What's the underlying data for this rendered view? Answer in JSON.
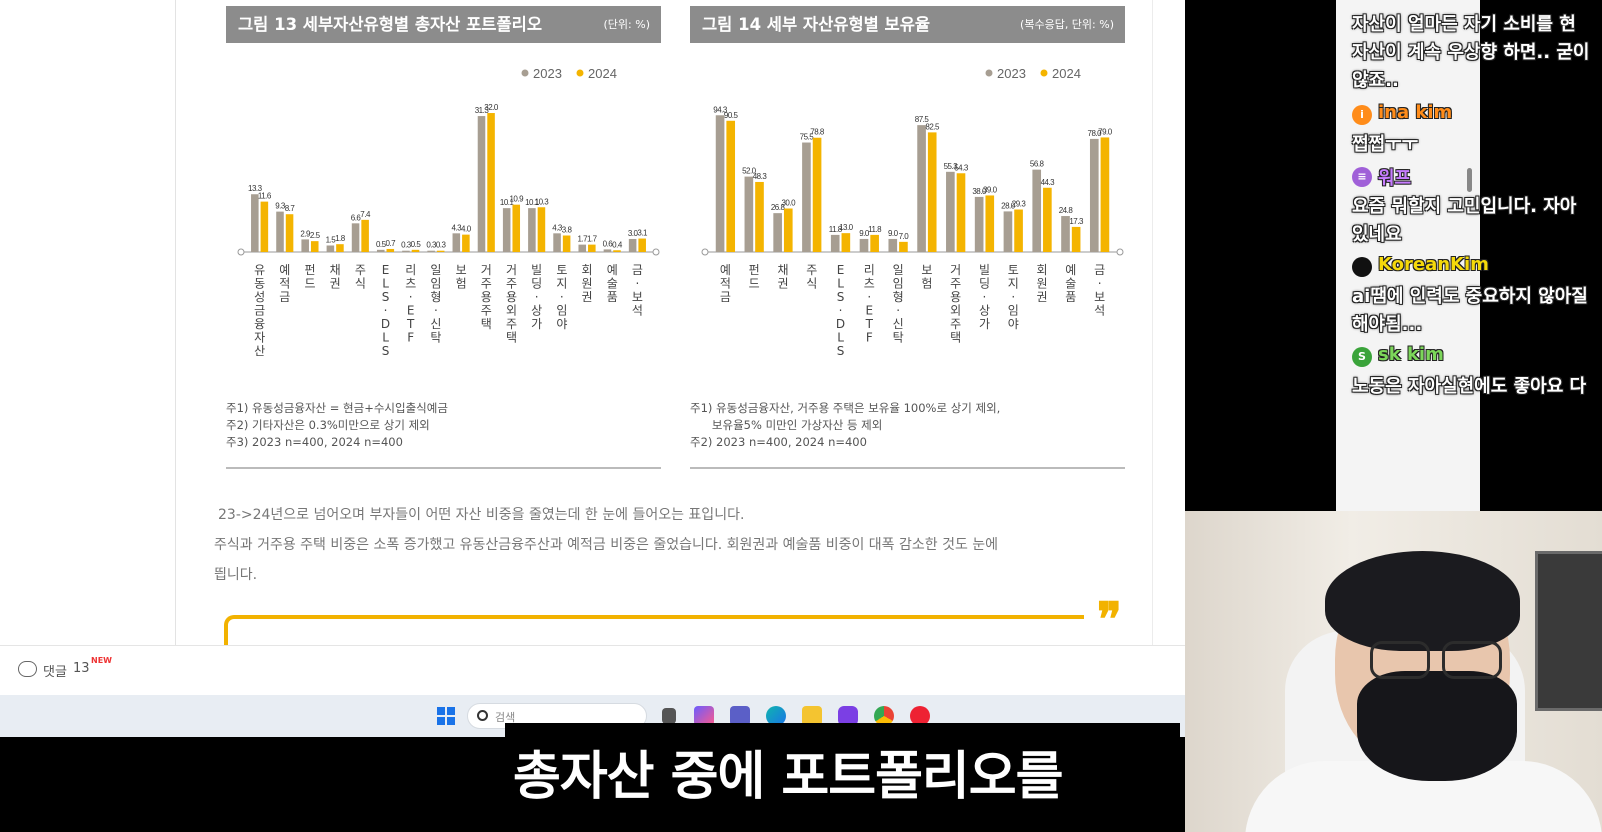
{
  "figures": [
    {
      "title": "그림 13  세부자산유형별 총자산 포트폴리오",
      "unit": "(단위: %)",
      "notes": [
        "주1) 유동성금융자산 = 현금+수시입출식예금",
        "주2) 기타자산은 0.3%미만으로 상기 제외",
        "주3) 2023 n=400, 2024 n=400"
      ]
    },
    {
      "title": "그림 14  세부 자산유형별 보유율",
      "unit": "(복수응답, 단위: %)",
      "notes": [
        "주1) 유동성금융자산, 거주용 주택은 보유율 100%로 상기 제외,",
        "      보유율5% 미만인 가상자산 등 제외",
        "주2) 2023 n=400, 2024 n=400"
      ]
    }
  ],
  "chart_data": [
    {
      "type": "bar",
      "title": "그림 13  세부자산유형별 총자산 포트폴리오",
      "unit": "(단위: %)",
      "categories": [
        "유동성금융자산",
        "예적금",
        "펀드",
        "채권",
        "주식",
        "ELS·DLS",
        "리츠·ETF",
        "일임형·신탁",
        "보험",
        "거주용주택",
        "거주용외주택",
        "빌딩·상가",
        "토지·임야",
        "회원권",
        "예술품",
        "금·보석"
      ],
      "series": [
        {
          "name": "2023",
          "color": "#a79e92",
          "values": [
            13.3,
            9.3,
            2.9,
            1.5,
            6.6,
            0.5,
            0.3,
            0.3,
            4.3,
            31.3,
            10.1,
            10.1,
            4.3,
            1.7,
            0.6,
            3.0
          ]
        },
        {
          "name": "2024",
          "color": "#f4b400",
          "values": [
            11.6,
            8.7,
            2.5,
            1.8,
            7.4,
            0.7,
            0.5,
            0.3,
            4.0,
            32.0,
            10.9,
            10.3,
            3.8,
            1.7,
            0.4,
            3.1
          ]
        }
      ],
      "legend": "top-right",
      "ylim": [
        0,
        35
      ]
    },
    {
      "type": "bar",
      "title": "그림 14  세부 자산유형별 보유율",
      "unit": "(복수응답, 단위: %)",
      "categories": [
        "예적금",
        "펀드",
        "채권",
        "주식",
        "ELS·DLS",
        "리츠·ETF",
        "일임형·신탁",
        "보험",
        "거주용외주택",
        "빌딩·상가",
        "토지·임야",
        "회원권",
        "예술품",
        "금·보석"
      ],
      "series": [
        {
          "name": "2023",
          "color": "#a79e92",
          "values": [
            94.3,
            52.0,
            26.8,
            75.5,
            11.8,
            9.0,
            9.0,
            87.5,
            55.3,
            38.0,
            28.0,
            56.8,
            24.8,
            78.0
          ]
        },
        {
          "name": "2024",
          "color": "#f4b400",
          "values": [
            90.5,
            48.3,
            30.0,
            78.8,
            13.0,
            11.8,
            7.0,
            82.5,
            54.3,
            39.0,
            29.3,
            44.3,
            17.3,
            79.0
          ]
        }
      ],
      "legend": "top-right",
      "ylim": [
        0,
        100
      ]
    }
  ],
  "body_text": [
    "23->24년으로 넘어오며 부자들이 어떤 자산 비중을 줄였는데 한 눈에 들어오는 표입니다.",
    "주식과 거주용 주택 비중은 소폭 증가했고 유동산금융주산과 예적금 비중은 줄었습니다. 회원권과 예술품 비중이 대폭 감소한 것도 눈에",
    "띕니다."
  ],
  "comment_bar": {
    "label": "댓글",
    "count": "13",
    "badge": "NEW"
  },
  "taskbar": {
    "search_placeholder": "검색"
  },
  "subtitle": "총자산 중에 포트폴리오를",
  "chat": {
    "messages": [
      {
        "user": "",
        "lines": [
          "자산이 얼마든 자기 소비를 현",
          "자산이 계속 우상향 하면.. 굳이",
          "않죠.."
        ]
      },
      {
        "user": "ina kim",
        "color": "#ff8c1a",
        "badge_color": "#ff8c1a",
        "badge": "i",
        "lines": [
          "쩝쩝ㅜㅜ"
        ]
      },
      {
        "user": "워프",
        "color": "#c77dff",
        "badge_color": "#a060d8",
        "badge": "≡",
        "lines": [
          "요즘 뭐할지 고민입니다. 자아",
          "있네요"
        ]
      },
      {
        "user": "KoreanKim",
        "color": "#f5d90a",
        "badge_color": "#111111",
        "badge": "",
        "lines": [
          "ai땜에 인력도 중요하지 않아질",
          "해야됨..."
        ]
      },
      {
        "user": "sk kim",
        "color": "#7cd65a",
        "badge_color": "#3aa33a",
        "badge": "S",
        "lines": [
          "노동은 자아실현에도 좋아요 다"
        ]
      }
    ]
  }
}
